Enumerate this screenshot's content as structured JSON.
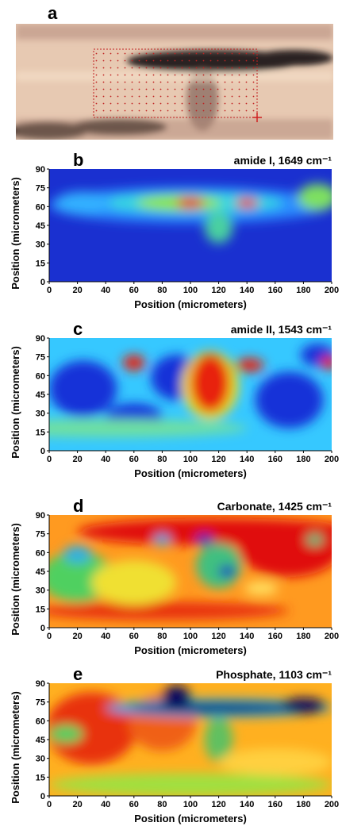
{
  "image_panel": {
    "label": "a"
  },
  "chart_data": [
    {
      "type": "heatmap",
      "panel_label": "b",
      "title": "amide I, 1649 cm⁻¹",
      "xlabel": "Position (micrometers)",
      "ylabel": "Position (micrometers)",
      "xlim": [
        0,
        200
      ],
      "xticks": [
        0,
        20,
        40,
        60,
        80,
        100,
        120,
        140,
        160,
        180,
        200
      ],
      "ylim": [
        0,
        90
      ],
      "yticks": [
        0,
        15,
        30,
        45,
        60,
        75,
        90
      ]
    },
    {
      "type": "heatmap",
      "panel_label": "c",
      "title": "amide II, 1543 cm⁻¹",
      "xlabel": "Position (micrometers)",
      "ylabel": "Position (micrometers)",
      "xlim": [
        0,
        200
      ],
      "xticks": [
        0,
        20,
        40,
        60,
        80,
        100,
        120,
        140,
        160,
        180,
        200
      ],
      "ylim": [
        0,
        90
      ],
      "yticks": [
        0,
        15,
        30,
        45,
        60,
        75,
        90
      ]
    },
    {
      "type": "heatmap",
      "panel_label": "d",
      "title": "Carbonate, 1425 cm⁻¹",
      "xlabel": "Position (micrometers)",
      "ylabel": "Position (micrometers)",
      "xlim": [
        0,
        200
      ],
      "xticks": [
        0,
        20,
        40,
        60,
        80,
        100,
        120,
        140,
        160,
        180,
        200
      ],
      "ylim": [
        0,
        90
      ],
      "yticks": [
        0,
        15,
        30,
        45,
        60,
        75,
        90
      ]
    },
    {
      "type": "heatmap",
      "panel_label": "e",
      "title": "Phosphate, 1103 cm⁻¹",
      "xlabel": "Position (micrometers)",
      "ylabel": "Position (micrometers)",
      "xlim": [
        0,
        200
      ],
      "xticks": [
        0,
        20,
        40,
        60,
        80,
        100,
        120,
        140,
        160,
        180,
        200
      ],
      "ylim": [
        0,
        90
      ],
      "yticks": [
        0,
        15,
        30,
        45,
        60,
        75,
        90
      ]
    }
  ]
}
